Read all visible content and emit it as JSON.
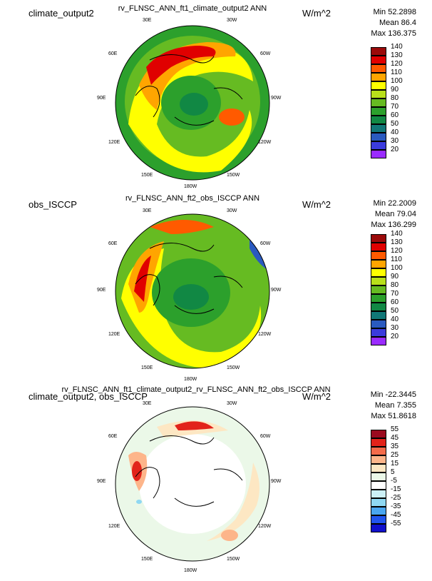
{
  "panels": [
    {
      "left_label": "climate_output2",
      "title": "rv_FLNSC_ANN_ft1_climate_output2  ANN",
      "units": "W/m^2",
      "min": "Min 52.2898",
      "mean": "Mean 86.4",
      "max": "Max 136.375",
      "colorbar": {
        "labels": [
          "140",
          "130",
          "120",
          "110",
          "100",
          "90",
          "80",
          "70",
          "60",
          "50",
          "40",
          "30",
          "20"
        ],
        "colors": [
          "#9b0a0a",
          "#e00000",
          "#ff5a00",
          "#ffa500",
          "#ffff00",
          "#b8e01a",
          "#66bb22",
          "#2ca02c",
          "#118844",
          "#117777",
          "#2a5abf",
          "#3b3bdd",
          "#9a2bff"
        ]
      }
    },
    {
      "left_label": "obs_ISCCP",
      "title": "rv_FLNSC_ANN_ft2_obs_ISCCP  ANN",
      "units": "W/m^2",
      "min": "Min 22.2009",
      "mean": "Mean 79.04",
      "max": "Max 136.299",
      "colorbar": {
        "labels": [
          "140",
          "130",
          "120",
          "110",
          "100",
          "90",
          "80",
          "70",
          "60",
          "50",
          "40",
          "30",
          "20"
        ],
        "colors": [
          "#9b0a0a",
          "#e00000",
          "#ff5a00",
          "#ffa500",
          "#ffff00",
          "#b8e01a",
          "#66bb22",
          "#2ca02c",
          "#118844",
          "#117777",
          "#2a5abf",
          "#3b3bdd",
          "#9a2bff"
        ]
      }
    },
    {
      "left_label": "climate_output2, obs_ISCCP",
      "title": "rv_FLNSC_ANN_ft1_climate_output2_rv_FLNSC_ANN_ft2_obs_ISCCP  ANN",
      "units": "W/m^2",
      "min": "Min -22.3445",
      "mean": "Mean 7.355",
      "max": "Max 51.8618",
      "colorbar": {
        "labels": [
          "55",
          "45",
          "35",
          "25",
          "15",
          "5",
          "-5",
          "-15",
          "-25",
          "-35",
          "-45",
          "-55"
        ],
        "colors": [
          "#9b0a1f",
          "#e2231a",
          "#f46b4a",
          "#fdb58a",
          "#fde7c3",
          "#ebf8e8",
          "#ffffff",
          "#ccf0f6",
          "#8fd8f2",
          "#4aa6f0",
          "#2255ee",
          "#1010cc"
        ]
      }
    }
  ],
  "lon_labels": [
    "30E",
    "30W",
    "60E",
    "60W",
    "90E",
    "90W",
    "120E",
    "120W",
    "150E",
    "150W",
    "180W"
  ],
  "map_colors": {
    "panel1_base": "#2ca02c",
    "panel2_base": "#66bb22",
    "panel3_base": "#ffffff",
    "coast": "#000000"
  }
}
